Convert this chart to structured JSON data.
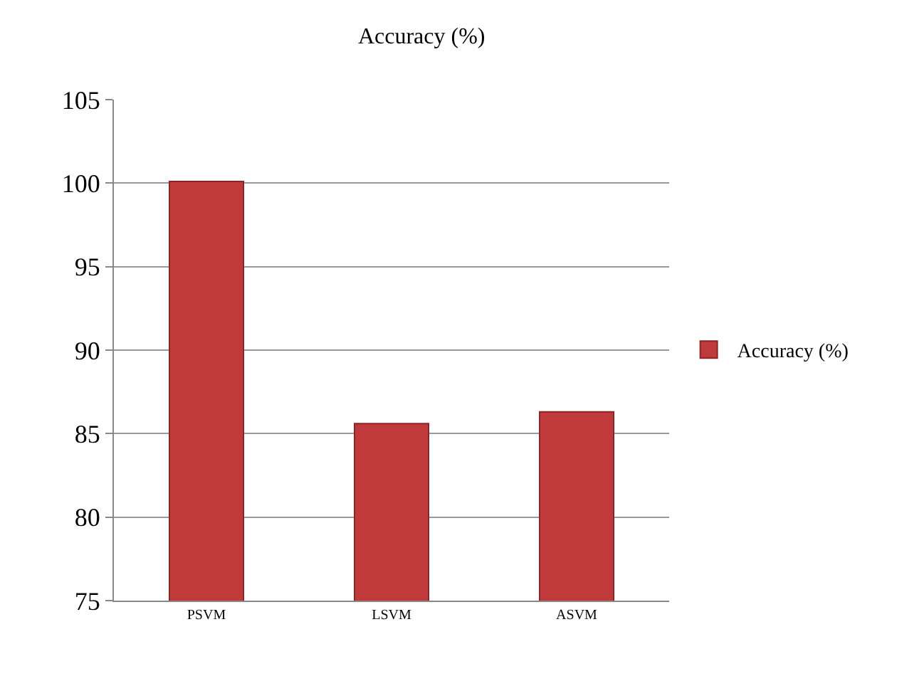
{
  "chart_data": {
    "type": "bar",
    "title": "Accuracy (%)",
    "categories": [
      "PSVM",
      "LSVM",
      "ASVM"
    ],
    "series": [
      {
        "name": "Accuracy (%)",
        "color": "#c0393b",
        "values": [
          100.1,
          85.6,
          86.3
        ]
      }
    ],
    "ylim": [
      75,
      105
    ],
    "yticks": [
      75,
      80,
      85,
      90,
      95,
      100,
      105
    ],
    "grid": "y",
    "legend": "right"
  }
}
